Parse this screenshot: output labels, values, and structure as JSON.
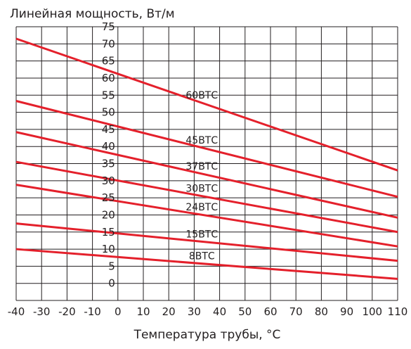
{
  "chart_data": {
    "type": "line",
    "title": "",
    "ylabel": "Линейная мощность, Вт/м",
    "xlabel": "Температура трубы, °С",
    "xlim": [
      -40,
      110
    ],
    "ylim": [
      -5,
      75
    ],
    "x_ticks": [
      -40,
      -30,
      -20,
      -10,
      0,
      10,
      20,
      30,
      40,
      50,
      60,
      70,
      80,
      90,
      100,
      110
    ],
    "y_ticks": [
      0,
      5,
      10,
      15,
      20,
      25,
      30,
      35,
      40,
      45,
      50,
      55,
      60,
      65,
      70,
      75
    ],
    "grid": true,
    "line_color": "#e4202b",
    "series": [
      {
        "name": "60ВТС",
        "x": [
          -40,
          110
        ],
        "y": [
          71.5,
          33
        ]
      },
      {
        "name": "45ВТС",
        "x": [
          -40,
          110
        ],
        "y": [
          53.3,
          25.3
        ]
      },
      {
        "name": "37ВТС",
        "x": [
          -40,
          110
        ],
        "y": [
          44.2,
          19.2
        ]
      },
      {
        "name": "30ВТС",
        "x": [
          -40,
          110
        ],
        "y": [
          35.5,
          15
        ]
      },
      {
        "name": "24ВТС",
        "x": [
          -40,
          110
        ],
        "y": [
          28.8,
          10.8
        ]
      },
      {
        "name": "15ВТС",
        "x": [
          -40,
          110
        ],
        "y": [
          17.5,
          6.6
        ]
      },
      {
        "name": "8ВТС",
        "x": [
          -40,
          110
        ],
        "y": [
          10,
          1.3
        ]
      }
    ]
  }
}
